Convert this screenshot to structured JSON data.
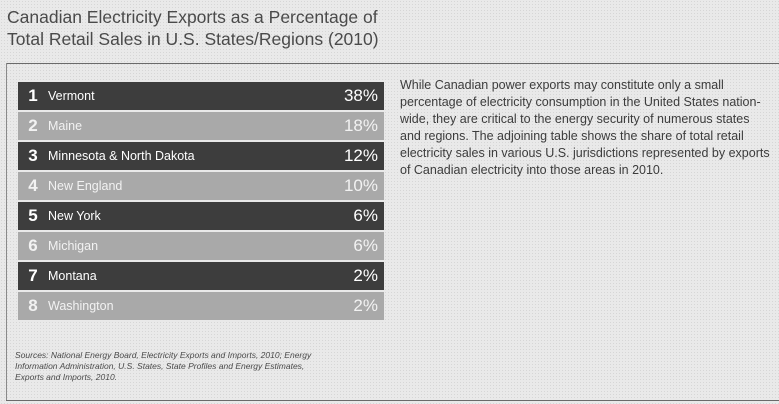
{
  "title": "Canadian Electricity Exports as a Percentage of Total Retail Sales in U.S. States/Regions (2010)",
  "table": {
    "rows": [
      {
        "rank": "1",
        "name": "Vermont",
        "value": "38%"
      },
      {
        "rank": "2",
        "name": "Maine",
        "value": "18%"
      },
      {
        "rank": "3",
        "name": "Minnesota & North Dakota",
        "value": "12%"
      },
      {
        "rank": "4",
        "name": "New England",
        "value": "10%"
      },
      {
        "rank": "5",
        "name": "New York",
        "value": "6%"
      },
      {
        "rank": "6",
        "name": "Michigan",
        "value": "6%"
      },
      {
        "rank": "7",
        "name": "Montana",
        "value": "2%"
      },
      {
        "rank": "8",
        "name": "Washington",
        "value": "2%"
      }
    ]
  },
  "body_text": "While Canadian power exports may constitute only a small percentage of electricity consumption in the United States nation-wide, they are critical to the energy security of numerous states and regions. The adjoining table shows the share of total retail electricity sales in various U.S. jurisdictions represented by exports of Canadian electricity into those areas in 2010.",
  "sources": "Sources: National Energy Board, Electricity Exports and Imports, 2010; Energy Information Administration, U.S. States, State Profiles and Energy Estimates, Exports and Imports, 2010."
}
